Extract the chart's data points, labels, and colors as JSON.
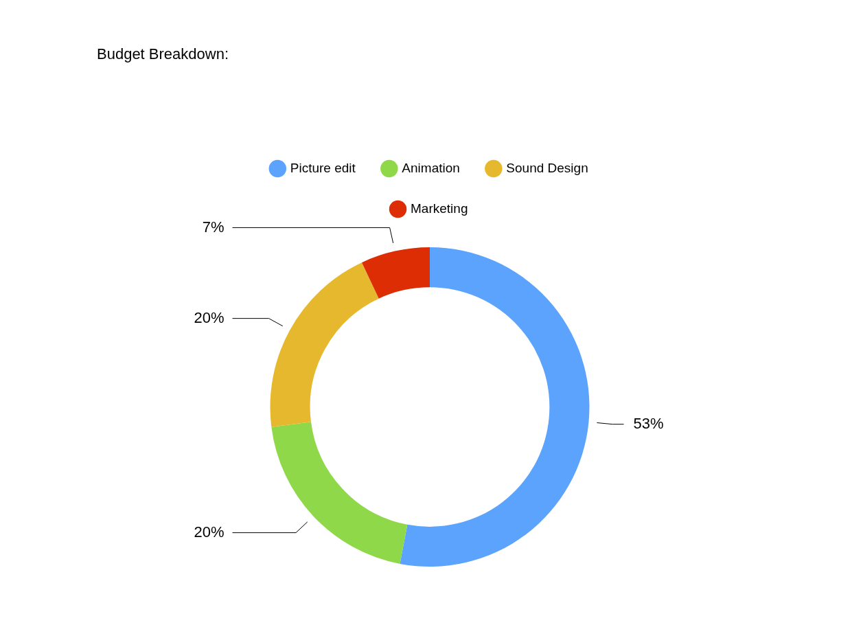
{
  "chart_data": {
    "type": "donut",
    "title": "Budget Breakdown:",
    "categories": [
      "Picture edit",
      "Animation",
      "Sound Design",
      "Marketing"
    ],
    "values": [
      53,
      20,
      20,
      7
    ],
    "colors": [
      "#5ba3fc",
      "#8fd84a",
      "#e6b82e",
      "#dc2d05"
    ],
    "value_labels": [
      "53%",
      "20%",
      "20%",
      "7%"
    ],
    "legend": "top"
  }
}
